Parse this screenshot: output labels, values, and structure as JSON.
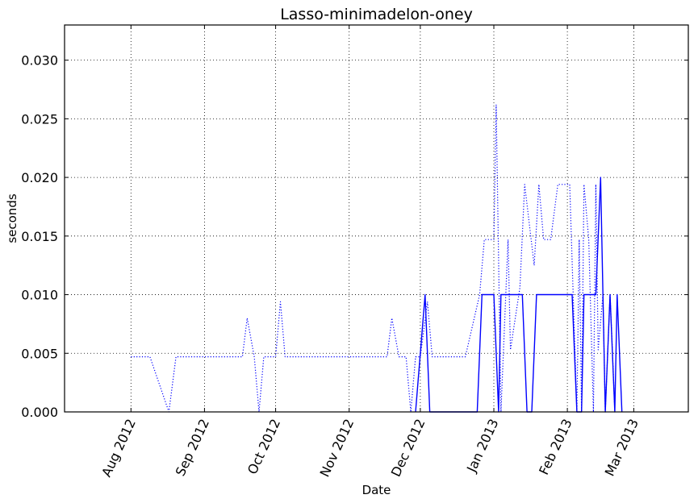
{
  "chart_data": {
    "type": "line",
    "title": "Lasso-minimadelon-oney",
    "xlabel": "Date",
    "ylabel": "seconds",
    "ylim": [
      0,
      0.033
    ],
    "xlim": [
      "2012-07-04",
      "2013-03-24"
    ],
    "grid": true,
    "x_ticks": [
      {
        "date": "2012-08-01",
        "label": "Aug 2012"
      },
      {
        "date": "2012-09-01",
        "label": "Sep 2012"
      },
      {
        "date": "2012-10-01",
        "label": "Oct 2012"
      },
      {
        "date": "2012-11-01",
        "label": "Nov 2012"
      },
      {
        "date": "2012-12-01",
        "label": "Dec 2012"
      },
      {
        "date": "2013-01-01",
        "label": "Jan 2013"
      },
      {
        "date": "2013-02-01",
        "label": "Feb 2013"
      },
      {
        "date": "2013-03-01",
        "label": "Mar 2013"
      }
    ],
    "y_ticks": [
      {
        "value": 0.0,
        "label": "0.000"
      },
      {
        "value": 0.005,
        "label": "0.005"
      },
      {
        "value": 0.01,
        "label": "0.010"
      },
      {
        "value": 0.015,
        "label": "0.015"
      },
      {
        "value": 0.02,
        "label": "0.020"
      },
      {
        "value": 0.025,
        "label": "0.025"
      },
      {
        "value": 0.03,
        "label": "0.030"
      }
    ],
    "series": [
      {
        "style": "dotted",
        "color": "#0000ff",
        "points": [
          [
            "2012-08-01",
            0.0047
          ],
          [
            "2012-08-09",
            0.0047
          ],
          [
            "2012-08-17",
            0.0
          ],
          [
            "2012-08-20",
            0.0047
          ],
          [
            "2012-09-17",
            0.0047
          ],
          [
            "2012-09-19",
            0.008
          ],
          [
            "2012-09-22",
            0.0047
          ],
          [
            "2012-09-24",
            0.0
          ],
          [
            "2012-09-26",
            0.0047
          ],
          [
            "2012-10-01",
            0.0047
          ],
          [
            "2012-10-03",
            0.0094
          ],
          [
            "2012-10-05",
            0.0047
          ],
          [
            "2012-11-17",
            0.0047
          ],
          [
            "2012-11-19",
            0.008
          ],
          [
            "2012-11-22",
            0.0047
          ],
          [
            "2012-11-25",
            0.0047
          ],
          [
            "2012-11-27",
            0.0
          ],
          [
            "2012-11-29",
            0.0047
          ],
          [
            "2012-12-01",
            0.0047
          ],
          [
            "2012-12-04",
            0.0094
          ],
          [
            "2012-12-06",
            0.0047
          ],
          [
            "2012-12-20",
            0.0047
          ],
          [
            "2012-12-26",
            0.01
          ],
          [
            "2012-12-28",
            0.0147
          ],
          [
            "2012-12-31",
            0.0147
          ],
          [
            "2013-01-01",
            0.0147
          ],
          [
            "2013-01-02",
            0.0262
          ],
          [
            "2013-01-04",
            0.0
          ],
          [
            "2013-01-07",
            0.0147
          ],
          [
            "2013-01-08",
            0.0053
          ],
          [
            "2013-01-12",
            0.0106
          ],
          [
            "2013-01-14",
            0.0194
          ],
          [
            "2013-01-18",
            0.0125
          ],
          [
            "2013-01-20",
            0.0194
          ],
          [
            "2013-01-22",
            0.0147
          ],
          [
            "2013-01-25",
            0.0147
          ],
          [
            "2013-01-28",
            0.0194
          ],
          [
            "2013-02-02",
            0.0194
          ],
          [
            "2013-02-05",
            0.0
          ],
          [
            "2013-02-06",
            0.0147
          ],
          [
            "2013-02-07",
            0.0
          ],
          [
            "2013-02-08",
            0.0194
          ],
          [
            "2013-02-10",
            0.0147
          ],
          [
            "2013-02-12",
            0.0
          ],
          [
            "2013-02-13",
            0.0194
          ],
          [
            "2013-02-14",
            0.0053
          ],
          [
            "2013-02-16",
            0.01
          ],
          [
            "2013-02-17",
            0.0
          ],
          [
            "2013-02-19",
            0.01
          ],
          [
            "2013-02-20",
            0.0053
          ],
          [
            "2013-02-21",
            0.0
          ]
        ]
      },
      {
        "style": "solid",
        "color": "#0000ff",
        "points": [
          [
            "2012-11-29",
            0.0
          ],
          [
            "2012-12-03",
            0.01
          ],
          [
            "2012-12-05",
            0.0
          ],
          [
            "2012-12-25",
            0.0
          ],
          [
            "2012-12-27",
            0.01
          ],
          [
            "2013-01-01",
            0.01
          ],
          [
            "2013-01-03",
            0.0
          ],
          [
            "2013-01-04",
            0.01
          ],
          [
            "2013-01-13",
            0.01
          ],
          [
            "2013-01-15",
            0.0
          ],
          [
            "2013-01-17",
            0.0
          ],
          [
            "2013-01-19",
            0.01
          ],
          [
            "2013-02-03",
            0.01
          ],
          [
            "2013-02-05",
            0.0
          ],
          [
            "2013-02-07",
            0.0
          ],
          [
            "2013-02-08",
            0.01
          ],
          [
            "2013-02-13",
            0.01
          ],
          [
            "2013-02-15",
            0.02
          ],
          [
            "2013-02-17",
            0.0
          ],
          [
            "2013-02-19",
            0.01
          ],
          [
            "2013-02-21",
            0.0
          ],
          [
            "2013-02-22",
            0.01
          ],
          [
            "2013-02-24",
            0.0
          ]
        ]
      }
    ]
  }
}
